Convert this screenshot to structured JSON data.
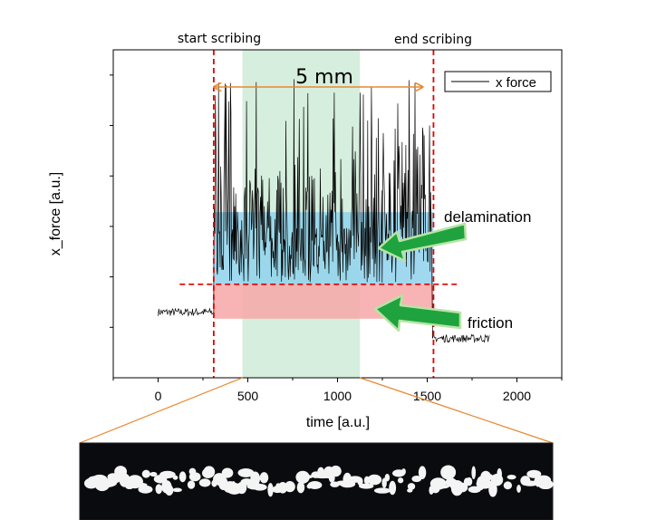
{
  "chart_data": {
    "type": "line",
    "xlabel": "time [a.u.]",
    "ylabel": "x_force [a.u.]",
    "xlim": [
      -250,
      2250
    ],
    "ylim": [
      0,
      1
    ],
    "x_ticks": [
      0,
      500,
      1000,
      1500,
      2000
    ],
    "legend": {
      "position": "top-right",
      "label": "x force"
    },
    "series": [
      {
        "name": "x force",
        "segments": [
          {
            "x_range": [
              0,
              300
            ],
            "level": 0.2,
            "noise": 0.012
          },
          {
            "x_range": [
              310,
              1525
            ],
            "level": "oscillating",
            "base": 0.35,
            "peak_max": 0.93
          },
          {
            "x_range": [
              1535,
              1850
            ],
            "level": 0.12,
            "noise": 0.012
          }
        ]
      }
    ],
    "annotations": {
      "start_label": "start scribing",
      "end_label": "end scribing",
      "start_x": 310,
      "end_x": 1535,
      "span_label": "5 mm",
      "span_x": [
        310,
        1475
      ],
      "highlight_x": [
        470,
        1125
      ],
      "delamination_label": "delamination",
      "delamination_band": [
        0.285,
        0.505
      ],
      "friction_label": "friction",
      "friction_band": [
        0.18,
        0.285
      ],
      "threshold_y": 0.285,
      "threshold_x": [
        120,
        1665
      ]
    },
    "colors": {
      "signal": "#000000",
      "marker_line": "#e00000",
      "span_arrow": "#e8882f",
      "highlight": "#d6eedd",
      "delamination_band": "#8fd2ec",
      "friction_band": "#f7a7a7",
      "green_arrow": "#1fa33e",
      "zoom_lines": "#e8882f"
    },
    "inset_image": {
      "subject": "micrograph-of-scribe-track"
    }
  }
}
